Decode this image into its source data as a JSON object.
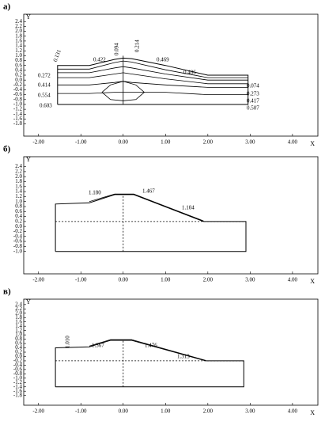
{
  "chart_data": [
    {
      "type": "line",
      "title": "а)",
      "xlabel": "X",
      "ylabel": "Y",
      "xlim": [
        -2.35,
        4.6
      ],
      "ylim": [
        -2.3,
        2.7
      ],
      "xticks": [
        {
          "value": -2,
          "label": "-2.00"
        },
        {
          "value": -1,
          "label": "-1.00"
        },
        {
          "value": 0,
          "label": "0.00"
        },
        {
          "value": 1,
          "label": "1.00"
        },
        {
          "value": 2,
          "label": "2.00"
        },
        {
          "value": 3,
          "label": "3.00"
        },
        {
          "value": 4,
          "label": "4.00"
        }
      ],
      "yticks": [
        2.4,
        2.2,
        {
          "value": 2,
          "label": "2.0"
        },
        1.8,
        1.6,
        1.4,
        1.2,
        {
          "value": 1,
          "label": "1.0"
        },
        0.8,
        0.6,
        0.4,
        0.2,
        {
          "value": 0,
          "label": "0.0"
        },
        -0.2,
        -0.4,
        -0.6,
        -0.8,
        {
          "value": -1,
          "label": "-1.0"
        },
        -1.2,
        -1.4,
        -1.6,
        -1.8
      ],
      "color": "#000",
      "lines": [
        {
          "x": [
            -1.55,
            -1.55,
            -0.8,
            -0.2,
            0,
            0.2,
            1,
            2,
            2.95,
            2.95,
            -1.55
          ],
          "y": [
            -1.0,
            0.6,
            0.6,
            0.85,
            0.9,
            0.88,
            0.6,
            0.2,
            0.2,
            -1.0,
            -1.0
          ],
          "style": "solid"
        },
        {
          "x": [
            -1.55,
            -0.8,
            -0.2,
            0,
            0.2,
            1,
            2,
            2.95
          ],
          "y": [
            0.45,
            0.45,
            0.72,
            0.78,
            0.74,
            0.42,
            0.1,
            0.1
          ],
          "style": "solid"
        },
        {
          "x": [
            -1.55,
            -0.8,
            -0.2,
            0,
            0.2,
            1,
            2,
            2.95
          ],
          "y": [
            0.3,
            0.3,
            0.5,
            0.55,
            0.5,
            0.25,
            0.0,
            0.0
          ],
          "style": "solid"
        },
        {
          "x": [
            -1.55,
            -0.8,
            -0.2,
            0,
            0.2,
            1,
            2,
            2.95
          ],
          "y": [
            0.1,
            0.1,
            0.25,
            0.3,
            0.25,
            0.05,
            -0.15,
            -0.15
          ],
          "style": "solid"
        },
        {
          "x": [
            -1.55,
            -0.8,
            -0.2,
            0,
            0.2,
            1,
            2,
            2.95
          ],
          "y": [
            -0.2,
            -0.2,
            -0.1,
            -0.05,
            -0.1,
            -0.2,
            -0.3,
            -0.3
          ],
          "style": "solid"
        },
        {
          "x": [
            -1.55,
            -0.8,
            -0.2,
            0,
            0.2,
            1,
            2,
            2.95
          ],
          "y": [
            -0.55,
            -0.55,
            -0.5,
            -0.5,
            -0.5,
            -0.5,
            -0.6,
            -0.6
          ],
          "style": "solid"
        },
        {
          "x": [
            -0.5,
            -0.3,
            0,
            0.3,
            0.5,
            0.3,
            0,
            -0.3,
            -0.5
          ],
          "y": [
            -0.5,
            -0.2,
            -0.05,
            -0.2,
            -0.5,
            -0.8,
            -0.85,
            -0.8,
            -0.5
          ],
          "style": "solid"
        },
        {
          "x": [
            0,
            0
          ],
          "y": [
            -1.0,
            1.0
          ],
          "style": "solid"
        }
      ],
      "annotations": [
        "0.131",
        "0.422",
        "0.094",
        "0.214",
        "0.469",
        "0.406",
        "0.272",
        "0.414",
        "0.554",
        "0.603",
        "0.074",
        "0.273",
        "0.417",
        "0.507"
      ]
    },
    {
      "type": "line",
      "title": "б)",
      "xlabel": "X",
      "ylabel": "Y",
      "xlim": [
        -2.35,
        4.6
      ],
      "ylim": [
        -1.9,
        2.8
      ],
      "xticks": [
        {
          "value": -2,
          "label": "-2.00"
        },
        {
          "value": -1,
          "label": "-1.00"
        },
        {
          "value": 0,
          "label": "0.00"
        },
        {
          "value": 1,
          "label": "1.00"
        },
        {
          "value": 2,
          "label": "2.00"
        },
        {
          "value": 3,
          "label": "3.00"
        },
        {
          "value": 4,
          "label": "4.00"
        }
      ],
      "yticks": [
        2.4,
        2.2,
        {
          "value": 2,
          "label": "2.0"
        },
        1.8,
        1.6,
        1.4,
        1.2,
        {
          "value": 1,
          "label": "1.0"
        },
        0.8,
        0.6,
        0.4,
        0.2,
        {
          "value": 0,
          "label": "0.0"
        },
        -0.2,
        -0.4,
        -0.6,
        -0.8,
        {
          "value": -1,
          "label": "-1.0"
        }
      ],
      "color": "#000",
      "lines": [
        {
          "x": [
            -1.6,
            -1.6,
            -0.8,
            -0.2,
            0.25,
            1.9,
            2.9,
            2.9,
            -1.6
          ],
          "y": [
            -1.0,
            0.9,
            0.95,
            1.28,
            1.28,
            0.2,
            0.2,
            -1.0,
            -1.0
          ],
          "style": "solid"
        },
        {
          "x": [
            -0.8,
            -0.2,
            0.25,
            1.9
          ],
          "y": [
            1.0,
            1.3,
            1.3,
            0.22
          ],
          "style": "solid"
        },
        {
          "x": [
            0,
            0
          ],
          "y": [
            -1.0,
            1.28
          ],
          "style": "dashed"
        },
        {
          "x": [
            -1.6,
            2.9
          ],
          "y": [
            0.2,
            0.2
          ],
          "style": "dashed"
        }
      ],
      "annotations": [
        "1.180",
        "1.467",
        "1.104"
      ]
    },
    {
      "type": "line",
      "title": "в)",
      "xlabel": "X",
      "ylabel": "Y",
      "xlim": [
        -2.35,
        4.6
      ],
      "ylim": [
        -2.25,
        2.65
      ],
      "xticks": [
        {
          "value": -2,
          "label": "-2.00"
        },
        {
          "value": -1,
          "label": "-1.00"
        },
        {
          "value": 0,
          "label": "0.00"
        },
        {
          "value": 1,
          "label": "1.00"
        },
        {
          "value": 2,
          "label": "2.00"
        },
        {
          "value": 3,
          "label": "3.00"
        },
        {
          "value": 4,
          "label": "4.00"
        }
      ],
      "yticks": [
        2.4,
        2.2,
        {
          "value": 2,
          "label": "2.0"
        },
        1.8,
        1.6,
        1.4,
        1.2,
        {
          "value": 1,
          "label": "1.0"
        },
        0.8,
        0.6,
        0.4,
        0.2,
        {
          "value": 0,
          "label": "0.0"
        },
        -0.2,
        -0.4,
        -0.6,
        -0.8,
        {
          "value": -1,
          "label": "-1.0"
        },
        -1.2,
        -1.4,
        -1.6,
        -1.8
      ],
      "color": "#000",
      "lines": [
        {
          "x": [
            -1.6,
            -1.6,
            -0.8,
            -0.3,
            0.2,
            1.95,
            2.85,
            2.85,
            -1.6
          ],
          "y": [
            -1.4,
            0.4,
            0.45,
            0.75,
            0.75,
            -0.2,
            -0.2,
            -1.4,
            -1.4
          ],
          "style": "solid"
        },
        {
          "x": [
            -0.8,
            -0.3,
            0.2,
            1.95
          ],
          "y": [
            0.48,
            0.78,
            0.78,
            -0.18
          ],
          "style": "solid"
        },
        {
          "x": [
            0,
            0
          ],
          "y": [
            -1.4,
            0.75
          ],
          "style": "dashed"
        },
        {
          "x": [
            -1.6,
            2.85
          ],
          "y": [
            -0.2,
            -0.2
          ],
          "style": "dashed"
        }
      ],
      "annotations": [
        "1.010",
        "1.367",
        "1.476",
        "1.313"
      ]
    }
  ]
}
